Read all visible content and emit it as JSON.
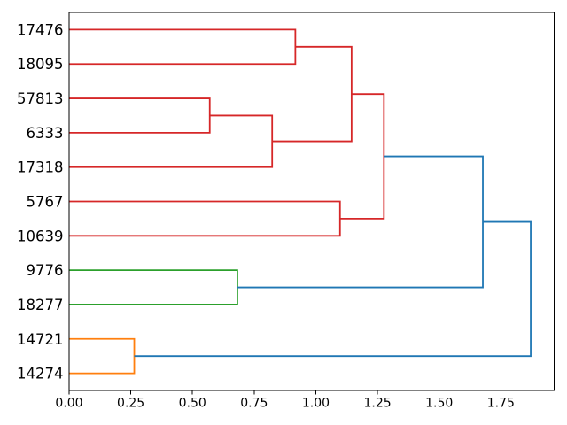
{
  "figure": {
    "background": "#ffffff",
    "border_color": "#000000"
  },
  "chart_data": {
    "type": "dendrogram",
    "orientation": "horizontal",
    "leaf_axis": "left",
    "title": "",
    "xlabel": "",
    "ylabel": "",
    "grid": false,
    "legend": null,
    "xlim": [
      0,
      1.966
    ],
    "ylim": [
      0,
      110
    ],
    "leaves": [
      "17476",
      "18095",
      "57813",
      "6333",
      "17318",
      "5767",
      "10639",
      "9776",
      "18277",
      "14721",
      "14274"
    ],
    "merges": [
      {
        "id": "m1",
        "children": [
          "14721",
          "14274"
        ],
        "height": 0.264,
        "color_key": "orange"
      },
      {
        "id": "m3",
        "children": [
          "57813",
          "6333"
        ],
        "height": 0.57,
        "color_key": "red"
      },
      {
        "id": "m2",
        "children": [
          "9776",
          "18277"
        ],
        "height": 0.682,
        "color_key": "green"
      },
      {
        "id": "m4",
        "children": [
          "m3",
          "17318"
        ],
        "height": 0.823,
        "color_key": "red"
      },
      {
        "id": "m5",
        "children": [
          "17476",
          "18095"
        ],
        "height": 0.917,
        "color_key": "red"
      },
      {
        "id": "m6",
        "children": [
          "5767",
          "10639"
        ],
        "height": 1.098,
        "color_key": "red"
      },
      {
        "id": "m7",
        "children": [
          "m5",
          "m4"
        ],
        "height": 1.145,
        "color_key": "red"
      },
      {
        "id": "m8",
        "children": [
          "m7",
          "m6"
        ],
        "height": 1.276,
        "color_key": "red"
      },
      {
        "id": "m9",
        "children": [
          "m8",
          "m2"
        ],
        "height": 1.677,
        "color_key": "blue"
      },
      {
        "id": "m10",
        "children": [
          "m9",
          "m1"
        ],
        "height": 1.871,
        "color_key": "blue"
      }
    ],
    "colors": {
      "red": "#d62728",
      "green": "#2ca02c",
      "orange": "#ff7f0e",
      "blue": "#1f77b4"
    },
    "x_ticks": [
      {
        "value": 0.0,
        "label": "0.00"
      },
      {
        "value": 0.25,
        "label": "0.25"
      },
      {
        "value": 0.5,
        "label": "0.50"
      },
      {
        "value": 0.75,
        "label": "0.75"
      },
      {
        "value": 1.0,
        "label": "1.00"
      },
      {
        "value": 1.25,
        "label": "1.25"
      },
      {
        "value": 1.5,
        "label": "1.50"
      },
      {
        "value": 1.75,
        "label": "1.75"
      }
    ]
  }
}
